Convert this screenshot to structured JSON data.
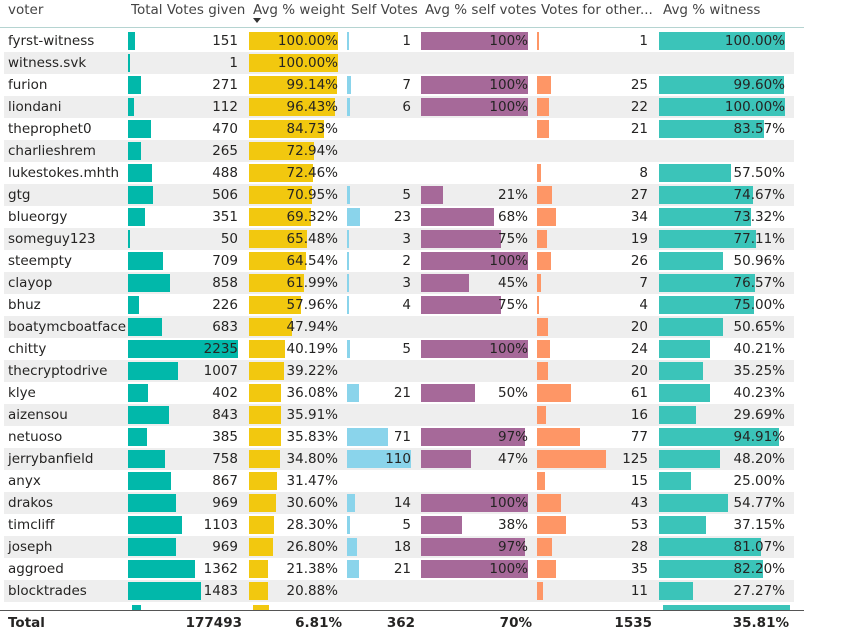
{
  "columns": [
    "voter",
    "Total Votes given",
    "Avg % weight",
    "Self Votes",
    "Avg % self votes",
    "Votes for other...",
    "Avg % witness"
  ],
  "colors": {
    "total_votes": "#01b8aa",
    "weight": "#f2c80f",
    "self_votes": "#8ad4eb",
    "self_pct": "#a66999",
    "other": "#fe9666",
    "witness": "#3bc4b9"
  },
  "rows": [
    {
      "voter": "fyrst-witness",
      "total": "151",
      "weight": "100.00%",
      "self": "1",
      "self_pct": "100%",
      "other": "1",
      "witness": "100.00%"
    },
    {
      "voter": "witness.svk",
      "total": "1",
      "weight": "100.00%",
      "self": "",
      "self_pct": "",
      "other": "",
      "witness": ""
    },
    {
      "voter": "furion",
      "total": "271",
      "weight": "99.14%",
      "self": "7",
      "self_pct": "100%",
      "other": "25",
      "witness": "99.60%"
    },
    {
      "voter": "liondani",
      "total": "112",
      "weight": "96.43%",
      "self": "6",
      "self_pct": "100%",
      "other": "22",
      "witness": "100.00%"
    },
    {
      "voter": "theprophet0",
      "total": "470",
      "weight": "84.73%",
      "self": "",
      "self_pct": "",
      "other": "21",
      "witness": "83.57%"
    },
    {
      "voter": "charlieshrem",
      "total": "265",
      "weight": "72.94%",
      "self": "",
      "self_pct": "",
      "other": "",
      "witness": ""
    },
    {
      "voter": "lukestokes.mhth",
      "total": "488",
      "weight": "72.46%",
      "self": "",
      "self_pct": "",
      "other": "8",
      "witness": "57.50%"
    },
    {
      "voter": "gtg",
      "total": "506",
      "weight": "70.95%",
      "self": "5",
      "self_pct": "21%",
      "other": "27",
      "witness": "74.67%"
    },
    {
      "voter": "blueorgy",
      "total": "351",
      "weight": "69.32%",
      "self": "23",
      "self_pct": "68%",
      "other": "34",
      "witness": "73.32%"
    },
    {
      "voter": "someguy123",
      "total": "50",
      "weight": "65.48%",
      "self": "3",
      "self_pct": "75%",
      "other": "19",
      "witness": "77.11%"
    },
    {
      "voter": "steempty",
      "total": "709",
      "weight": "64.54%",
      "self": "2",
      "self_pct": "100%",
      "other": "26",
      "witness": "50.96%"
    },
    {
      "voter": "clayop",
      "total": "858",
      "weight": "61.99%",
      "self": "3",
      "self_pct": "45%",
      "other": "7",
      "witness": "76.57%"
    },
    {
      "voter": "bhuz",
      "total": "226",
      "weight": "57.96%",
      "self": "4",
      "self_pct": "75%",
      "other": "4",
      "witness": "75.00%"
    },
    {
      "voter": "boatymcboatface",
      "total": "683",
      "weight": "47.94%",
      "self": "",
      "self_pct": "",
      "other": "20",
      "witness": "50.65%"
    },
    {
      "voter": "chitty",
      "total": "2235",
      "weight": "40.19%",
      "self": "5",
      "self_pct": "100%",
      "other": "24",
      "witness": "40.21%"
    },
    {
      "voter": "thecryptodrive",
      "total": "1007",
      "weight": "39.22%",
      "self": "",
      "self_pct": "",
      "other": "20",
      "witness": "35.25%"
    },
    {
      "voter": "klye",
      "total": "402",
      "weight": "36.08%",
      "self": "21",
      "self_pct": "50%",
      "other": "61",
      "witness": "40.23%"
    },
    {
      "voter": "aizensou",
      "total": "843",
      "weight": "35.91%",
      "self": "",
      "self_pct": "",
      "other": "16",
      "witness": "29.69%"
    },
    {
      "voter": "netuoso",
      "total": "385",
      "weight": "35.83%",
      "self": "71",
      "self_pct": "97%",
      "other": "77",
      "witness": "94.91%"
    },
    {
      "voter": "jerrybanfield",
      "total": "758",
      "weight": "34.80%",
      "self": "110",
      "self_pct": "47%",
      "other": "125",
      "witness": "48.20%"
    },
    {
      "voter": "anyx",
      "total": "867",
      "weight": "31.47%",
      "self": "",
      "self_pct": "",
      "other": "15",
      "witness": "25.00%"
    },
    {
      "voter": "drakos",
      "total": "969",
      "weight": "30.60%",
      "self": "14",
      "self_pct": "100%",
      "other": "43",
      "witness": "54.77%"
    },
    {
      "voter": "timcliff",
      "total": "1103",
      "weight": "28.30%",
      "self": "5",
      "self_pct": "38%",
      "other": "53",
      "witness": "37.15%"
    },
    {
      "voter": "joseph",
      "total": "969",
      "weight": "26.80%",
      "self": "18",
      "self_pct": "97%",
      "other": "28",
      "witness": "81.07%"
    },
    {
      "voter": "aggroed",
      "total": "1362",
      "weight": "21.38%",
      "self": "21",
      "self_pct": "100%",
      "other": "35",
      "witness": "82.20%"
    },
    {
      "voter": "blocktrades",
      "total": "1483",
      "weight": "20.88%",
      "self": "",
      "self_pct": "",
      "other": "11",
      "witness": "27.27%"
    }
  ],
  "totals": {
    "label": "Total",
    "total": "177493",
    "weight": "6.81%",
    "self": "362",
    "self_pct": "70%",
    "other": "1535",
    "witness": "35.81%"
  }
}
